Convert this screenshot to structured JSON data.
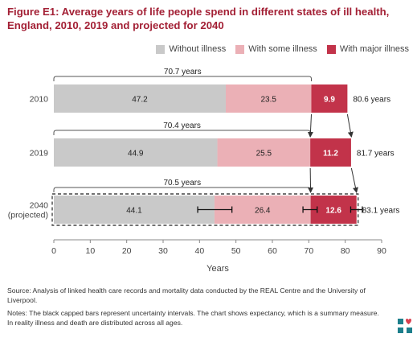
{
  "title": "Figure E1: Average years of life people spend in different states of ill health, England, 2010, 2019 and projected for 2040",
  "legend": [
    {
      "label": "Without illness",
      "color": "#c9c9c9"
    },
    {
      "label": "With some illness",
      "color": "#ebb0b6"
    },
    {
      "label": "With major illness",
      "color": "#c2334a"
    }
  ],
  "chart_data": {
    "type": "bar",
    "orientation": "horizontal",
    "stacked": true,
    "categories": [
      "2010",
      "2019",
      "2040"
    ],
    "category_sublabels": [
      "",
      "",
      "(projected)"
    ],
    "series": [
      {
        "name": "Without illness",
        "values": [
          47.2,
          44.9,
          44.1
        ],
        "color": "#c9c9c9"
      },
      {
        "name": "With some illness",
        "values": [
          23.5,
          25.5,
          26.4
        ],
        "color": "#ebb0b6"
      },
      {
        "name": "With major illness",
        "values": [
          9.9,
          11.2,
          12.6
        ],
        "color": "#c2334a"
      }
    ],
    "totals": [
      "80.6 years",
      "81.7 years",
      "83.1 years"
    ],
    "healthy_spans": [
      "70.7 years",
      "70.4 years",
      "70.5 years"
    ],
    "xlabel": "Years",
    "xlim": [
      0,
      90
    ],
    "xticks": [
      0,
      10,
      20,
      30,
      40,
      50,
      60,
      70,
      80,
      90
    ],
    "error_bars": [
      {
        "category": "2040",
        "center": 44.1,
        "low": 39.5,
        "high": 48.9
      },
      {
        "category": "2040",
        "center": 70.5,
        "low": 68.4,
        "high": 72.3
      },
      {
        "category": "2040",
        "center": 83.1,
        "low": 81.5,
        "high": 84.7
      }
    ],
    "grid": false
  },
  "source_text": "Source: Analysis of linked health care records and mortality data conducted by the REAL Centre and the University of Liverpool.",
  "notes_text": "Notes: The black capped bars represent uncertainty intervals. The chart shows expectancy, which is a summary measure. In reality illness and death are distributed across all ages.",
  "colors": {
    "title": "#a32035",
    "logo_teal": "#1d7f8c",
    "logo_red": "#d9404f"
  }
}
